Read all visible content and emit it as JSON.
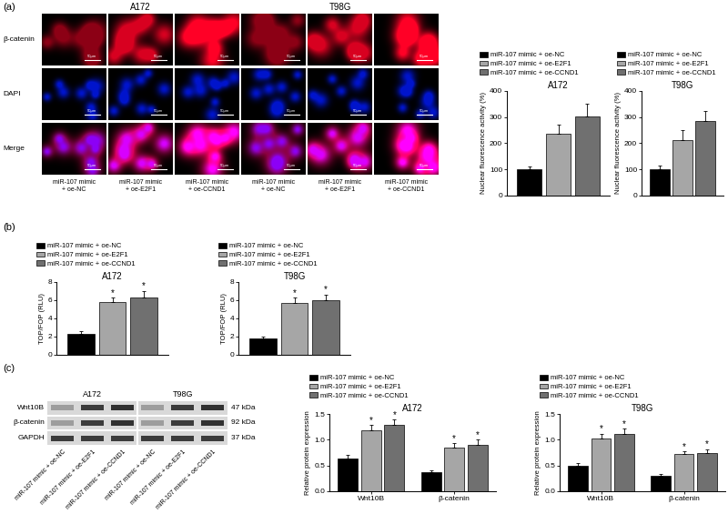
{
  "panel_labels": [
    "(a)",
    "(b)",
    "(c)"
  ],
  "images": {
    "cell_lines": [
      "A172",
      "T98G"
    ],
    "rows": [
      "β-catenin",
      "DAPI",
      "Merge"
    ],
    "columns": [
      "miR-107 mimic + oe-NC",
      "miR-107 mimic + oe-E2F1",
      "miR-107 mimic + oe-CCND1"
    ],
    "scale_bar": "50μm"
  },
  "blot": {
    "cell_lines": [
      "A172",
      "T98G"
    ],
    "bands": [
      {
        "name": "Wnt10B",
        "size": "47 kDa"
      },
      {
        "name": "β-catenin",
        "size": "92 kDa"
      },
      {
        "name": "GAPDH",
        "size": "37 kDa"
      }
    ],
    "lanes": [
      "miR-107 mimic + oe-NC",
      "miR-107 mimic + oe-E2F1",
      "miR-107 mimic + oe-CCND1",
      "miR-107 mimic + oe-NC",
      "miR-107 mimic + oe-E2F1",
      "miR-107 mimic + oe-CCND1"
    ]
  },
  "chart_data": [
    {
      "type": "bar",
      "title": "A172",
      "y_label": "Nuclear fluorescence activity (%)",
      "categories": [
        null
      ],
      "tick_labels": "y",
      "legend": "above",
      "ylim": [
        0,
        400
      ],
      "yticks": [
        0,
        100,
        200,
        300,
        400
      ],
      "series": [
        {
          "name": "miR-107 mimic + oe-NC",
          "color": "#000000",
          "values": [
            100
          ],
          "errors": [
            12
          ]
        },
        {
          "name": "miR-107 mimic + oe-E2F1",
          "color": "#a6a6a6",
          "values": [
            235
          ],
          "errors": [
            38
          ]
        },
        {
          "name": "miR-107 mimic + oe-CCND1",
          "color": "#707070",
          "values": [
            302
          ],
          "errors": [
            48
          ]
        }
      ]
    },
    {
      "type": "bar",
      "title": "T98G",
      "y_label": "Nuclear fluorescence activity (%)",
      "categories": [
        null
      ],
      "tick_labels": "y",
      "legend": "above",
      "ylim": [
        0,
        400
      ],
      "yticks": [
        0,
        100,
        200,
        300,
        400
      ],
      "series": [
        {
          "name": "miR-107 mimic + oe-NC",
          "color": "#000000",
          "values": [
            100
          ],
          "errors": [
            15
          ]
        },
        {
          "name": "miR-107 mimic + oe-E2F1",
          "color": "#a6a6a6",
          "values": [
            213
          ],
          "errors": [
            38
          ]
        },
        {
          "name": "miR-107 mimic + oe-CCND1",
          "color": "#707070",
          "values": [
            285
          ],
          "errors": [
            40
          ]
        }
      ]
    },
    {
      "type": "bar",
      "title": "A172",
      "y_label": "TOP/FOP (RLU)",
      "categories": [
        null
      ],
      "tick_labels": "y",
      "legend": "above",
      "ylim": [
        0,
        8
      ],
      "yticks": [
        0,
        2,
        4,
        6,
        8
      ],
      "series": [
        {
          "name": "miR-107 mimic + oe-NC",
          "color": "#000000",
          "values": [
            2.35
          ],
          "errors": [
            0.25
          ]
        },
        {
          "name": "miR-107 mimic + oe-E2F1",
          "color": "#a6a6a6",
          "values": [
            5.8
          ],
          "errors": [
            0.5
          ],
          "significance": [
            "*"
          ]
        },
        {
          "name": "miR-107 mimic + oe-CCND1",
          "color": "#707070",
          "values": [
            6.35
          ],
          "errors": [
            0.7
          ],
          "significance": [
            "*"
          ]
        }
      ]
    },
    {
      "type": "bar",
      "title": "T98G",
      "y_label": "TOP/FOP (RLU)",
      "categories": [
        null
      ],
      "tick_labels": "y",
      "legend": "above",
      "ylim": [
        0,
        8
      ],
      "yticks": [
        0,
        2,
        4,
        6,
        8
      ],
      "series": [
        {
          "name": "miR-107 mimic + oe-NC",
          "color": "#000000",
          "values": [
            1.85
          ],
          "errors": [
            0.2
          ]
        },
        {
          "name": "miR-107 mimic + oe-E2F1",
          "color": "#a6a6a6",
          "values": [
            5.7
          ],
          "errors": [
            0.6
          ],
          "significance": [
            "*"
          ]
        },
        {
          "name": "miR-107 mimic + oe-CCND1",
          "color": "#707070",
          "values": [
            6.05
          ],
          "errors": [
            0.6
          ],
          "significance": [
            "*"
          ]
        }
      ]
    },
    {
      "type": "bar",
      "title": "A172",
      "y_label": "Relative protein expression",
      "categories": [
        "Wnt10B",
        "β-catenin"
      ],
      "legend": "above",
      "ylim": [
        0,
        1.5
      ],
      "yticks": [
        {
          "value": 0,
          "label": "0.0"
        },
        0.5,
        {
          "value": 1,
          "label": "1.0"
        },
        1.5
      ],
      "series": [
        {
          "name": "miR-107 mimic + oe-NC",
          "color": "#000000",
          "values": [
            0.63,
            0.37
          ],
          "errors": [
            0.07,
            0.04
          ]
        },
        {
          "name": "miR-107 mimic + oe-E2F1",
          "color": "#a6a6a6",
          "values": [
            1.18,
            0.85
          ],
          "errors": [
            0.1,
            0.08
          ],
          "significance": [
            "*",
            "*"
          ]
        },
        {
          "name": "miR-107 mimic + oe-CCND1",
          "color": "#707070",
          "values": [
            1.28,
            0.9
          ],
          "errors": [
            0.12,
            0.1
          ],
          "significance": [
            "*",
            "*"
          ]
        }
      ]
    },
    {
      "type": "bar",
      "title": "T98G",
      "y_label": "Relative protein expression",
      "categories": [
        "Wnt10B",
        "β-catenin"
      ],
      "legend": "above",
      "ylim": [
        0,
        1.5
      ],
      "yticks": [
        {
          "value": 0,
          "label": "0.0"
        },
        0.5,
        {
          "value": 1,
          "label": "1.0"
        },
        1.5
      ],
      "series": [
        {
          "name": "miR-107 mimic + oe-NC",
          "color": "#000000",
          "values": [
            0.5,
            0.3
          ],
          "errors": [
            0.05,
            0.04
          ]
        },
        {
          "name": "miR-107 mimic + oe-E2F1",
          "color": "#a6a6a6",
          "values": [
            1.03,
            0.72
          ],
          "errors": [
            0.09,
            0.06
          ],
          "significance": [
            "*",
            "*"
          ]
        },
        {
          "name": "miR-107 mimic + oe-CCND1",
          "color": "#707070",
          "values": [
            1.12,
            0.75
          ],
          "errors": [
            0.1,
            0.07
          ],
          "significance": [
            "*",
            "*"
          ]
        }
      ]
    }
  ]
}
